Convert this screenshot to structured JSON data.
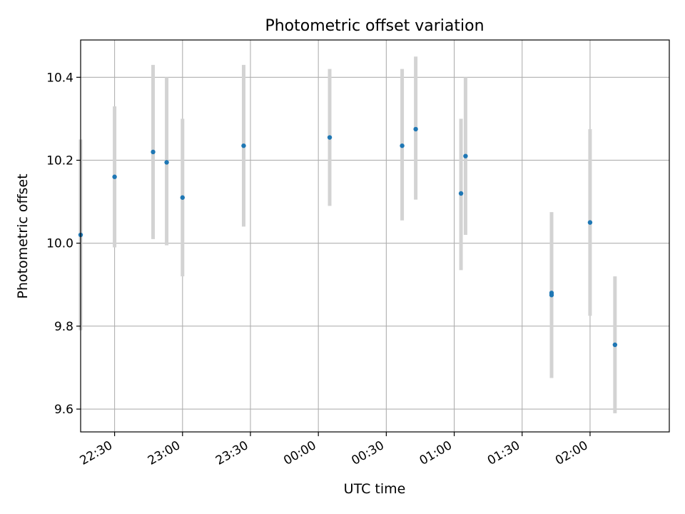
{
  "chart_data": {
    "type": "scatter",
    "title": "Photometric offset variation",
    "xlabel": "UTC time",
    "ylabel": "Photometric offset",
    "x_axis": "time",
    "x_ticks": [
      "22:30",
      "23:00",
      "23:30",
      "00:00",
      "00:30",
      "01:00",
      "01:30",
      "02:00"
    ],
    "x_range": [
      "22:15",
      "02:35"
    ],
    "ylim": [
      9.545,
      10.49
    ],
    "y_ticks": [
      "9.6",
      "9.8",
      "10.0",
      "10.2",
      "10.4"
    ],
    "grid": true,
    "points": [
      {
        "x": "22:15",
        "y": 10.02,
        "err_low": 9.79,
        "err_high": 10.25
      },
      {
        "x": "22:30",
        "y": 10.16,
        "err_low": 9.99,
        "err_high": 10.33
      },
      {
        "x": "22:47",
        "y": 10.22,
        "err_low": 10.01,
        "err_high": 10.43
      },
      {
        "x": "22:53",
        "y": 10.195,
        "err_low": 9.995,
        "err_high": 10.4
      },
      {
        "x": "23:00",
        "y": 10.11,
        "err_low": 9.92,
        "err_high": 10.3
      },
      {
        "x": "23:27",
        "y": 10.235,
        "err_low": 10.04,
        "err_high": 10.43
      },
      {
        "x": "00:05",
        "y": 10.255,
        "err_low": 10.09,
        "err_high": 10.42
      },
      {
        "x": "00:37",
        "y": 10.235,
        "err_low": 10.055,
        "err_high": 10.42
      },
      {
        "x": "00:43",
        "y": 10.275,
        "err_low": 10.105,
        "err_high": 10.45
      },
      {
        "x": "01:03",
        "y": 10.12,
        "err_low": 9.935,
        "err_high": 10.3
      },
      {
        "x": "01:05",
        "y": 10.21,
        "err_low": 10.02,
        "err_high": 10.4
      },
      {
        "x": "01:43",
        "y": 9.88,
        "err_low": 9.69,
        "err_high": 10.075
      },
      {
        "x": "01:43",
        "y": 9.875,
        "err_low": 9.675,
        "err_high": 10.07
      },
      {
        "x": "02:00",
        "y": 10.05,
        "err_low": 9.825,
        "err_high": 10.275
      },
      {
        "x": "02:11",
        "y": 9.755,
        "err_low": 9.59,
        "err_high": 9.92
      }
    ],
    "colors": {
      "point": "#1f77b4",
      "errorbar": "#d3d3d3",
      "grid": "#b0b0b0",
      "axes": "#000000"
    }
  }
}
